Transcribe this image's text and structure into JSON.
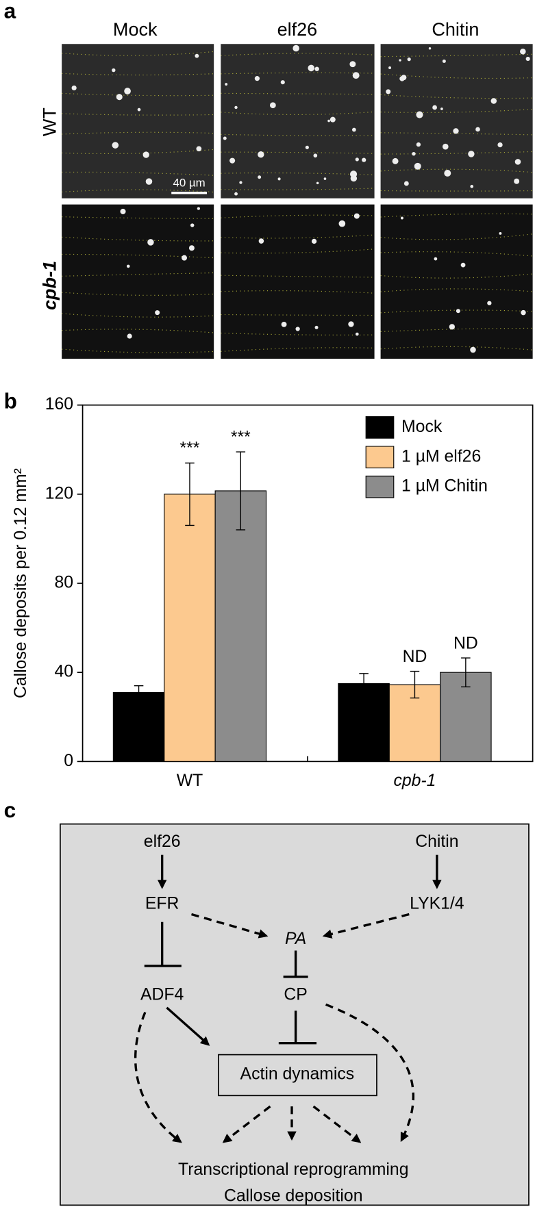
{
  "panel_a": {
    "label": "a",
    "columns": [
      "Mock",
      "elf26",
      "Chitin"
    ],
    "rows": [
      "WT",
      "cpb-1"
    ],
    "scale_bar": "40 µm"
  },
  "chart_data": {
    "type": "bar",
    "panel_label": "b",
    "ylabel": "Callose deposits per 0.12 mm²",
    "categories": [
      "WT",
      "cpb-1"
    ],
    "series": [
      {
        "name": "Mock",
        "color": "#000000",
        "values": [
          31,
          35
        ],
        "errors": [
          3,
          4.5
        ]
      },
      {
        "name": "1 µM elf26",
        "color": "#fcc98f",
        "values": [
          120,
          34.5
        ],
        "errors": [
          14,
          6
        ],
        "annotations": [
          "***",
          "ND"
        ]
      },
      {
        "name": "1 µM Chitin",
        "color": "#8c8c8c",
        "values": [
          121.5,
          40
        ],
        "errors": [
          17.5,
          6.5
        ],
        "annotations": [
          "***",
          "ND"
        ]
      }
    ],
    "ylim": [
      0,
      160
    ],
    "yticks": [
      0,
      40,
      80,
      120,
      160
    ],
    "legend": "upper right"
  },
  "panel_c": {
    "label": "c",
    "nodes": [
      "elf26",
      "Chitin",
      "EFR",
      "LYK1/4",
      "PA",
      "ADF4",
      "CP",
      "Actin dynamics",
      "Transcriptional reprogramming",
      "Callose deposition"
    ]
  }
}
